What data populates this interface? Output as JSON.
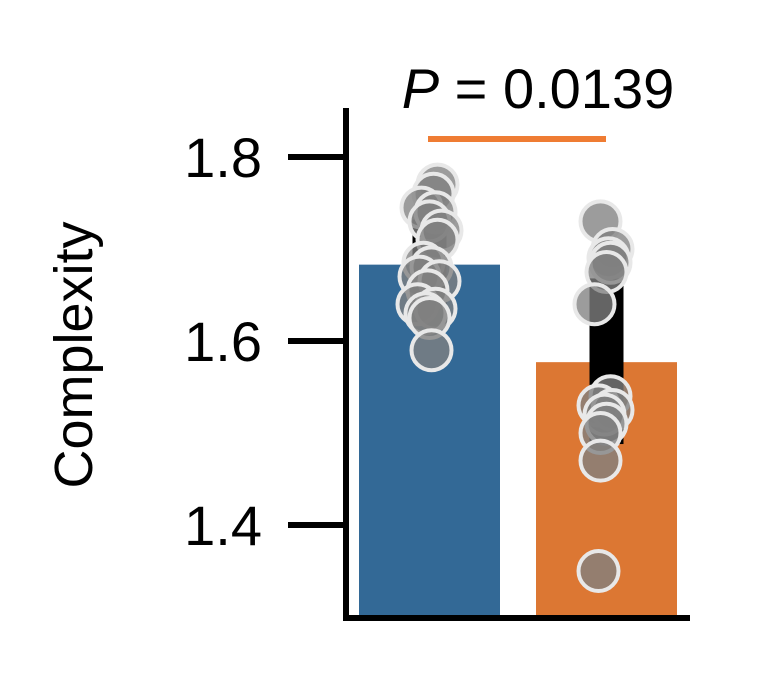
{
  "chart_data": {
    "type": "bar",
    "categories": [
      "",
      ""
    ],
    "values": [
      1.683,
      1.577
    ],
    "colors": [
      "#336996",
      "#dc7733"
    ],
    "error": [
      {
        "low": 1.637,
        "high": 1.732
      },
      {
        "low": 1.488,
        "high": 1.668
      }
    ],
    "points": [
      [
        1.77,
        1.76,
        1.745,
        1.74,
        1.73,
        1.72,
        1.71,
        1.685,
        1.68,
        1.67,
        1.665,
        1.655,
        1.64,
        1.635,
        1.63,
        1.625,
        1.59
      ],
      [
        1.73,
        1.7,
        1.69,
        1.685,
        1.675,
        1.64,
        1.54,
        1.53,
        1.525,
        1.52,
        1.51,
        1.5,
        1.47,
        1.35
      ]
    ],
    "point_color": "#808080",
    "title": "",
    "xlabel": "",
    "ylabel": "Complexity",
    "ylim": [
      1.3,
      1.85
    ],
    "yticks": [
      1.4,
      1.6,
      1.8
    ],
    "ytick_labels": [
      "1.4",
      "1.6",
      "1.8"
    ],
    "annotation": {
      "prefix": "P",
      "text": " = 0.0139",
      "color": "#ef7c33"
    },
    "grid": false
  }
}
